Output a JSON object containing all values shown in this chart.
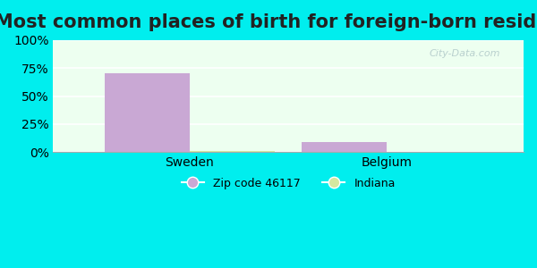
{
  "title": "Most common places of birth for foreign-born residents",
  "categories": [
    "Sweden",
    "Belgium"
  ],
  "zip_values": [
    70.0,
    9.0
  ],
  "indiana_values": [
    1.0,
    0.5
  ],
  "zip_color": "#c9a8d4",
  "indiana_color": "#d4e8a0",
  "bar_width": 0.28,
  "ylim": [
    0,
    100
  ],
  "yticks": [
    0,
    25,
    50,
    75,
    100
  ],
  "ytick_labels": [
    "0%",
    "25%",
    "50%",
    "75%",
    "100%"
  ],
  "bg_outer": "#00eeee",
  "legend_zip_label": "Zip code 46117",
  "legend_indiana_label": "Indiana",
  "watermark": "City-Data.com",
  "title_fontsize": 15,
  "axis_label_fontsize": 10
}
